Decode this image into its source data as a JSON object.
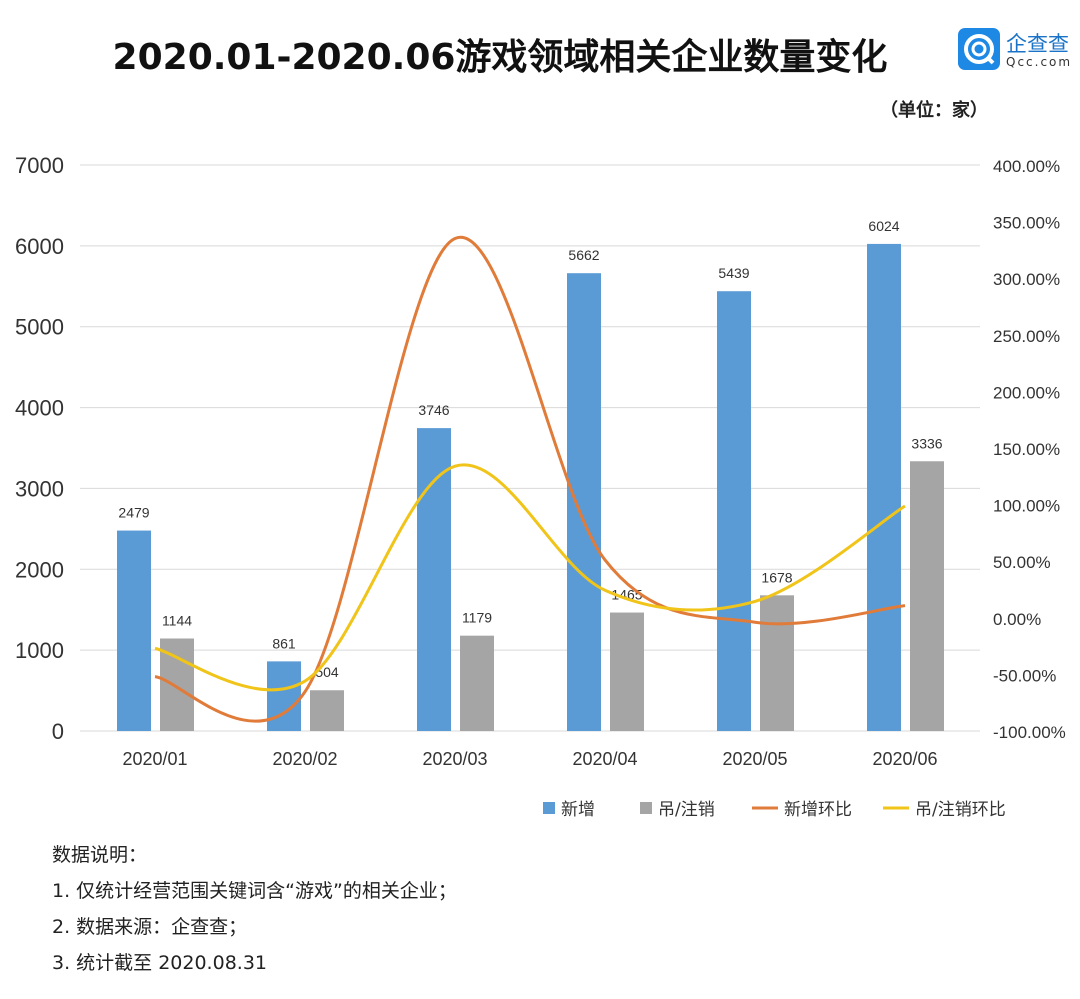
{
  "title": "2020.01-2020.06游戏领域相关企业数量变化",
  "logo": {
    "name": "企查查",
    "domain": "Qcc.com",
    "color": "#1e88e5"
  },
  "unit": "（单位：家）",
  "chart_data": {
    "type": "bar",
    "categories": [
      "2020/01",
      "2020/02",
      "2020/03",
      "2020/04",
      "2020/05",
      "2020/06"
    ],
    "ylim": [
      0,
      7000
    ],
    "yticks": [
      "0",
      "1000",
      "2000",
      "3000",
      "4000",
      "5000",
      "6000",
      "7000"
    ],
    "y2lim": [
      -100,
      400
    ],
    "y2ticks": [
      "-100.00%",
      "-50.00%",
      "0.00%",
      "50.00%",
      "100.00%",
      "150.00%",
      "200.00%",
      "250.00%",
      "300.00%",
      "350.00%",
      "400.00%"
    ],
    "grid": true,
    "legend": "bottom-right",
    "series": [
      {
        "name": "新增",
        "kind": "bar",
        "axis": "left",
        "color": "#5b9bd5",
        "values": [
          2479,
          861,
          3746,
          5662,
          5439,
          6024
        ],
        "labels": [
          "2479",
          "861",
          "3746",
          "5662",
          "5439",
          "6024"
        ]
      },
      {
        "name": "吊/注销",
        "kind": "bar",
        "axis": "left",
        "color": "#a5a5a5",
        "values": [
          1144,
          504,
          1179,
          1465,
          1678,
          3336
        ],
        "labels": [
          "1144",
          "504",
          "1179",
          "1465",
          "1678",
          "3336"
        ]
      },
      {
        "name": "新增环比",
        "kind": "line",
        "axis": "right",
        "color": "#e07b39",
        "values": [
          -52,
          -65.3,
          335.1,
          51.1,
          -3.9,
          10.8
        ]
      },
      {
        "name": "吊/注销环比",
        "kind": "line",
        "axis": "right",
        "color": "#f0c419",
        "values": [
          -27,
          -55.9,
          133.9,
          24.3,
          14.5,
          98.8
        ]
      }
    ]
  },
  "notes": [
    "数据说明：",
    "1. 仅统计经营范围关键词含“游戏”的相关企业；",
    "2. 数据来源：企查查；",
    "3. 统计截至 2020.08.31"
  ]
}
